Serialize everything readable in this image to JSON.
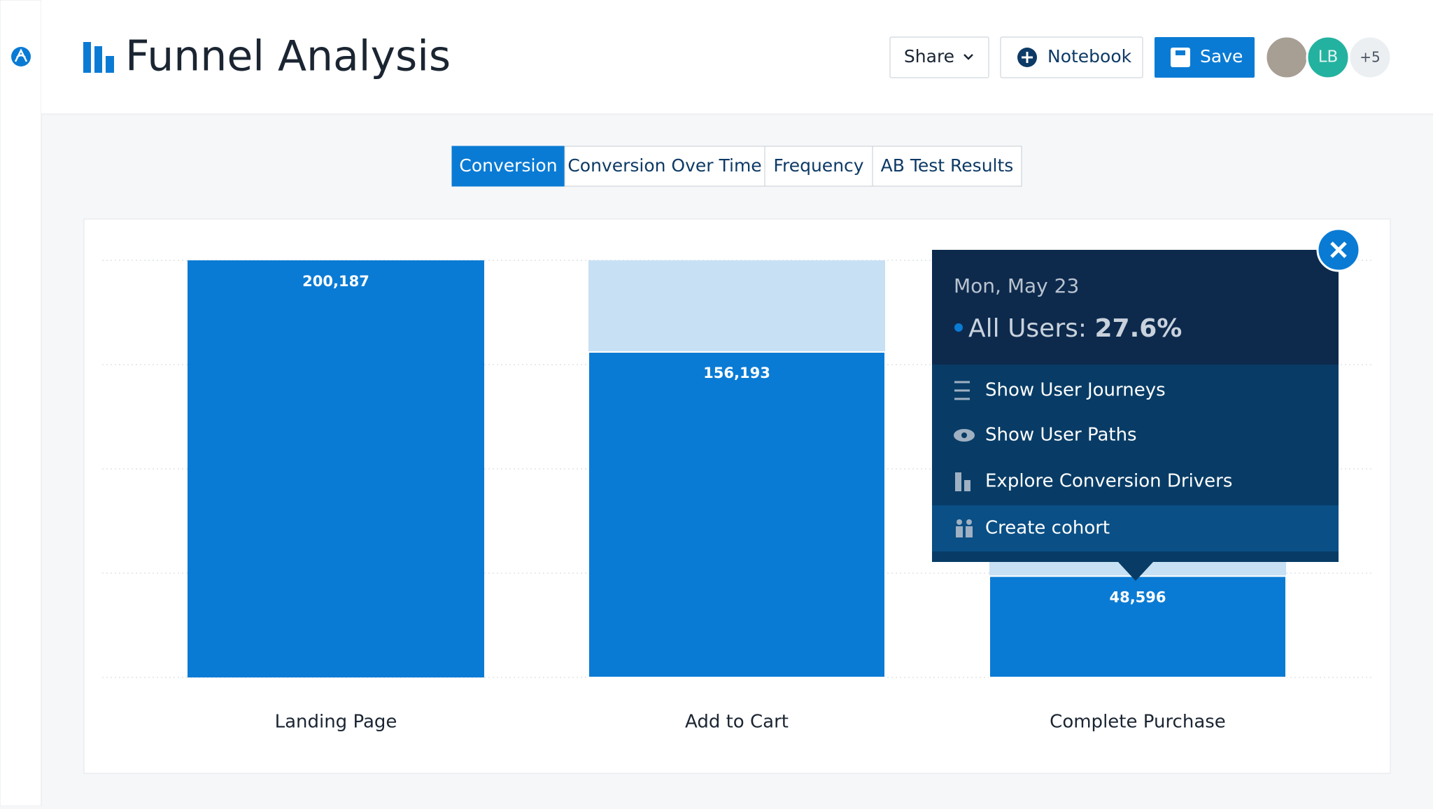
{
  "header": {
    "title": "Funnel Analysis",
    "buttons": [
      "Share",
      "Notebook",
      "Save"
    ],
    "avatars": [
      "LB",
      "+5"
    ]
  },
  "tabs": [
    "Conversion",
    "Conversion Over Time",
    "Frequency",
    "AB Test Results"
  ],
  "chart_data": {
    "type": "bar",
    "categories": [
      "Landing Page",
      "Add to Cart",
      "Complete Purchase"
    ],
    "values": [
      200187,
      156193,
      48596
    ],
    "value_labels": [
      "200,187",
      "156,193",
      "48,596"
    ],
    "color": "#0a7bd4",
    "dropoff_color": "#c7e0f4",
    "grid": true
  },
  "tooltip": {
    "date": "Mon, May 23",
    "series": "All Users:",
    "value": "27.6%",
    "menu": [
      "Show User Journeys",
      "Show User Paths",
      "Explore Conversion Drivers",
      "Create cohort"
    ]
  }
}
